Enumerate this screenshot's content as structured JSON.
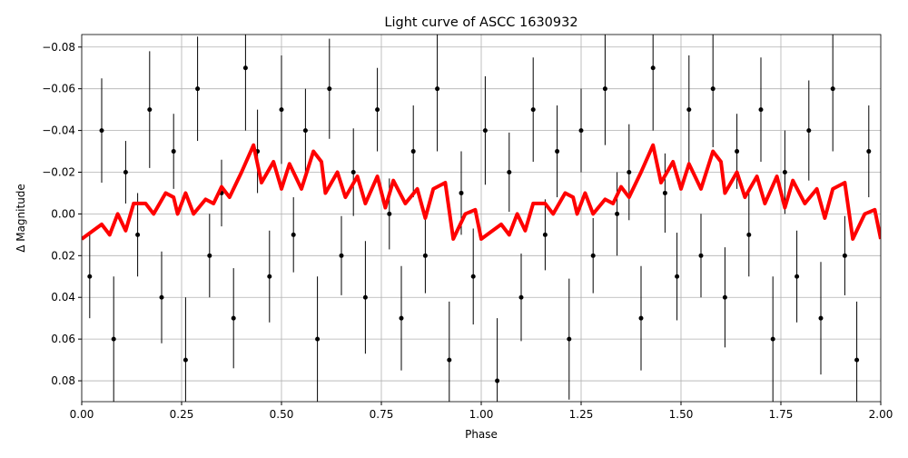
{
  "chart_data": {
    "type": "scatter",
    "title": "Light curve of ASCC 1630932",
    "x_label": "Phase",
    "y_label": "Δ Magnitude",
    "xlim": [
      0,
      2
    ],
    "ylim": [
      0.09,
      -0.086
    ],
    "grid": true,
    "xticks": [
      {
        "value": 0,
        "label": "0.00"
      },
      {
        "value": 0.25,
        "label": "0.25"
      },
      {
        "value": 0.5,
        "label": "0.50"
      },
      {
        "value": 0.75,
        "label": "0.75"
      },
      {
        "value": 1,
        "label": "1.00"
      },
      {
        "value": 1.25,
        "label": "1.25"
      },
      {
        "value": 1.5,
        "label": "1.50"
      },
      {
        "value": 1.75,
        "label": "1.75"
      },
      {
        "value": 2,
        "label": "2.00"
      }
    ],
    "yticks": [
      {
        "value": -0.08,
        "label": "−0.08"
      },
      {
        "value": -0.06,
        "label": "−0.06"
      },
      {
        "value": -0.04,
        "label": "−0.04"
      },
      {
        "value": -0.02,
        "label": "−0.02"
      },
      {
        "value": 0,
        "label": "0.00"
      },
      {
        "value": 0.02,
        "label": "0.02"
      },
      {
        "value": 0.04,
        "label": "0.04"
      },
      {
        "value": 0.06,
        "label": "0.06"
      },
      {
        "value": 0.08,
        "label": "0.08"
      }
    ],
    "series": [
      {
        "type": "errorbar",
        "color": "#000000",
        "x": [
          0.02,
          0.05,
          0.08,
          0.11,
          0.14,
          0.17,
          0.2,
          0.23,
          0.26,
          0.29,
          0.32,
          0.35,
          0.38,
          0.41,
          0.44,
          0.47,
          0.5,
          0.53,
          0.56,
          0.59,
          0.62,
          0.65,
          0.68,
          0.71,
          0.74,
          0.77,
          0.8,
          0.83,
          0.86,
          0.89,
          0.92,
          0.95,
          0.98,
          1.01,
          1.04,
          1.07,
          1.1,
          1.13,
          1.16,
          1.19,
          1.22,
          1.25,
          1.28,
          1.31,
          1.34,
          1.37,
          1.4,
          1.43,
          1.46,
          1.49,
          1.52,
          1.55,
          1.58,
          1.61,
          1.64,
          1.67,
          1.7,
          1.73,
          1.76,
          1.79,
          1.82,
          1.85,
          1.88,
          1.91,
          1.94,
          1.97
        ],
        "values": [
          0.03,
          -0.04,
          0.06,
          -0.02,
          0.01,
          -0.05,
          0.04,
          -0.03,
          0.07,
          -0.06,
          0.02,
          -0.01,
          0.05,
          -0.07,
          -0.03,
          0.03,
          -0.05,
          0.01,
          -0.04,
          0.06,
          -0.06,
          0.02,
          -0.02,
          0.04,
          -0.05,
          0.0,
          0.05,
          -0.03,
          0.02,
          -0.06,
          0.07,
          -0.01,
          0.03,
          -0.04,
          0.08,
          -0.02,
          0.04,
          -0.05,
          0.01,
          -0.03,
          0.06,
          -0.04,
          0.02,
          -0.06,
          0.0,
          -0.02,
          0.05,
          -0.07,
          -0.01,
          0.03,
          -0.05,
          0.02,
          -0.06,
          0.04,
          -0.03,
          0.01,
          -0.05,
          0.06,
          -0.02,
          0.03,
          -0.04,
          0.05,
          -0.06,
          0.02,
          0.07,
          -0.03
        ],
        "errors": [
          0.02,
          0.025,
          0.03,
          0.015,
          0.02,
          0.028,
          0.022,
          0.018,
          0.03,
          0.025,
          0.02,
          0.016,
          0.024,
          0.03,
          0.02,
          0.022,
          0.026,
          0.018,
          0.02,
          0.03,
          0.024,
          0.019,
          0.021,
          0.027,
          0.02,
          0.017,
          0.025,
          0.022,
          0.018,
          0.03,
          0.028,
          0.02,
          0.023,
          0.026,
          0.03,
          0.019,
          0.021,
          0.025,
          0.017,
          0.022,
          0.029,
          0.02,
          0.018,
          0.027,
          0.02,
          0.023,
          0.025,
          0.03,
          0.019,
          0.021,
          0.026,
          0.02,
          0.028,
          0.024,
          0.018,
          0.02,
          0.025,
          0.03,
          0.02,
          0.022,
          0.024,
          0.027,
          0.03,
          0.019,
          0.028,
          0.022
        ]
      },
      {
        "type": "line",
        "color": "#ff0000",
        "x": [
          0,
          0.05,
          0.07,
          0.09,
          0.11,
          0.13,
          0.16,
          0.18,
          0.21,
          0.23,
          0.24,
          0.26,
          0.28,
          0.31,
          0.33,
          0.35,
          0.37,
          0.4,
          0.43,
          0.45,
          0.48,
          0.5,
          0.52,
          0.55,
          0.58,
          0.6,
          0.61,
          0.64,
          0.66,
          0.69,
          0.71,
          0.74,
          0.76,
          0.78,
          0.81,
          0.84,
          0.86,
          0.88,
          0.91,
          0.93,
          0.96,
          0.985,
          1.0,
          1.05,
          1.07,
          1.09,
          1.11,
          1.13,
          1.16,
          1.18,
          1.21,
          1.23,
          1.24,
          1.26,
          1.28,
          1.31,
          1.33,
          1.35,
          1.37,
          1.4,
          1.43,
          1.45,
          1.48,
          1.5,
          1.52,
          1.55,
          1.58,
          1.6,
          1.61,
          1.64,
          1.66,
          1.69,
          1.71,
          1.74,
          1.76,
          1.78,
          1.81,
          1.84,
          1.86,
          1.88,
          1.91,
          1.93,
          1.96,
          1.985,
          2.0
        ],
        "values": [
          0.012,
          0.005,
          0.01,
          0.0,
          0.008,
          -0.005,
          -0.005,
          0.0,
          -0.01,
          -0.008,
          0.0,
          -0.01,
          0.0,
          -0.007,
          -0.005,
          -0.013,
          -0.008,
          -0.02,
          -0.033,
          -0.015,
          -0.025,
          -0.012,
          -0.024,
          -0.012,
          -0.03,
          -0.025,
          -0.01,
          -0.02,
          -0.008,
          -0.018,
          -0.005,
          -0.018,
          -0.003,
          -0.016,
          -0.005,
          -0.012,
          0.002,
          -0.012,
          -0.015,
          0.012,
          0.0,
          -0.002,
          0.012,
          0.005,
          0.01,
          0.0,
          0.008,
          -0.005,
          -0.005,
          0.0,
          -0.01,
          -0.008,
          0.0,
          -0.01,
          0.0,
          -0.007,
          -0.005,
          -0.013,
          -0.008,
          -0.02,
          -0.033,
          -0.015,
          -0.025,
          -0.012,
          -0.024,
          -0.012,
          -0.03,
          -0.025,
          -0.01,
          -0.02,
          -0.008,
          -0.018,
          -0.005,
          -0.018,
          -0.003,
          -0.016,
          -0.005,
          -0.012,
          0.002,
          -0.012,
          -0.015,
          0.012,
          0.0,
          -0.002,
          0.012
        ]
      }
    ]
  }
}
